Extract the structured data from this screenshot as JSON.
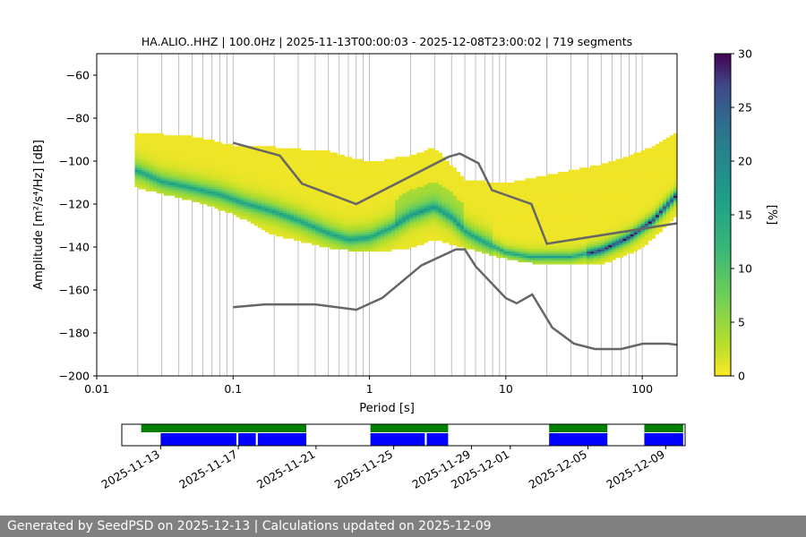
{
  "chart_data": [
    {
      "type": "heatmap",
      "title": "HA.ALIO..HHZ | 100.0Hz | 2025-11-13T00:00:03 - 2025-12-08T23:00:02 | 719 segments",
      "xlabel": "Period [s]",
      "ylabel": "Amplitude [m²/s⁴/Hz] [dB]",
      "x_scale": "log",
      "xlim": [
        0.01,
        180
      ],
      "ylim": [
        -200,
        -50
      ],
      "x_ticks": [
        0.01,
        0.1,
        1,
        10,
        100
      ],
      "x_tick_labels": [
        "0.01",
        "0.1",
        "1",
        "10",
        "100"
      ],
      "y_ticks": [
        -200,
        -180,
        -160,
        -140,
        -120,
        -100,
        -80,
        -60
      ],
      "y_tick_labels": [
        "−200",
        "−180",
        "−160",
        "−140",
        "−120",
        "−100",
        "−80",
        "−60"
      ],
      "grid": "vertical",
      "colorbar": {
        "label": "[%]",
        "range": [
          0,
          30
        ],
        "ticks": [
          0,
          5,
          10,
          15,
          20,
          25,
          30
        ],
        "tick_labels": [
          "0",
          "5",
          "10",
          "15",
          "20",
          "25",
          "30"
        ],
        "colormap": "viridis-reversed"
      },
      "psd_mode_curve": {
        "period": [
          0.02,
          0.03,
          0.05,
          0.08,
          0.12,
          0.2,
          0.3,
          0.5,
          0.7,
          1.0,
          1.5,
          2.0,
          3.0,
          4.0,
          5.0,
          6.0,
          8.0,
          10.0,
          15.0,
          20.0,
          30.0,
          50.0,
          80.0,
          120.0,
          180.0
        ],
        "db": [
          -105,
          -110,
          -113,
          -116,
          -120,
          -124,
          -128,
          -134,
          -137,
          -136,
          -131,
          -126,
          -122,
          -127,
          -133,
          -136,
          -140,
          -143,
          -145,
          -145,
          -145,
          -142,
          -136,
          -128,
          -116
        ]
      },
      "psd_spread": {
        "period": [
          0.02,
          0.05,
          0.1,
          0.2,
          0.5,
          1.0,
          2.0,
          3.0,
          5.0,
          10.0,
          20.0,
          50.0,
          100.0,
          180.0
        ],
        "upper_db": [
          -88,
          -90,
          -94,
          -95,
          -97,
          -102,
          -99,
          -95,
          -110,
          -112,
          -108,
          -103,
          -97,
          -88
        ],
        "lower_db": [
          -112,
          -118,
          -124,
          -134,
          -140,
          -142,
          -140,
          -136,
          -140,
          -145,
          -148,
          -148,
          -140,
          -125
        ]
      },
      "noise_model_high": {
        "period": [
          0.1,
          0.22,
          0.32,
          0.8,
          3.8,
          4.6,
          6.3,
          7.9,
          15.4,
          20.0,
          354.8
        ],
        "db": [
          -91.5,
          -97.4,
          -110.5,
          -120.0,
          -98.0,
          -96.5,
          -101.0,
          -113.5,
          -120.0,
          -138.5,
          -126.0
        ]
      },
      "noise_model_low": {
        "period": [
          0.1,
          0.17,
          0.4,
          0.8,
          1.24,
          2.4,
          4.3,
          5.0,
          6.0,
          10.0,
          12.0,
          15.6,
          21.9,
          31.6,
          45.0,
          70.0,
          101.0,
          154.0,
          328.0
        ],
        "db": [
          -168.0,
          -166.7,
          -166.7,
          -169.2,
          -163.7,
          -148.6,
          -141.1,
          -141.1,
          -149.0,
          -163.8,
          -166.2,
          -162.1,
          -177.5,
          -185.0,
          -187.5,
          -187.5,
          -185.0,
          -185.0,
          -187.5
        ]
      }
    },
    {
      "type": "timeline",
      "x_tick_labels": [
        "2025-11-13",
        "2025-11-17",
        "2025-11-21",
        "2025-11-25",
        "2025-11-29",
        "2025-12-01",
        "2025-12-05",
        "2025-12-09"
      ],
      "x_ticks": [
        "2025-11-13",
        "2025-11-17",
        "2025-11-21",
        "2025-11-25",
        "2025-11-29",
        "2025-12-01",
        "2025-12-05",
        "2025-12-09"
      ],
      "xlim": [
        "2025-11-11",
        "2025-12-10"
      ],
      "data_availability": {
        "color": "#008000",
        "intervals": [
          [
            "2025-11-12",
            "2025-11-20.5"
          ],
          [
            "2025-11-23.8",
            "2025-11-27.8"
          ],
          [
            "2025-12-03",
            "2025-12-06"
          ],
          [
            "2025-12-07.9",
            "2025-12-09.9"
          ]
        ]
      },
      "psd_coverage": {
        "color": "#0000ff",
        "intervals": [
          [
            "2025-11-13",
            "2025-11-16.9"
          ],
          [
            "2025-11-17",
            "2025-11-17.9"
          ],
          [
            "2025-11-18",
            "2025-11-20.5"
          ],
          [
            "2025-11-23.8",
            "2025-11-26.6"
          ],
          [
            "2025-11-26.7",
            "2025-11-27.8"
          ],
          [
            "2025-12-03",
            "2025-12-06"
          ],
          [
            "2025-12-07.9",
            "2025-12-09.9"
          ]
        ]
      }
    }
  ],
  "footer": "Generated by SeedPSD on 2025-12-13 | Calculations updated on 2025-12-09"
}
